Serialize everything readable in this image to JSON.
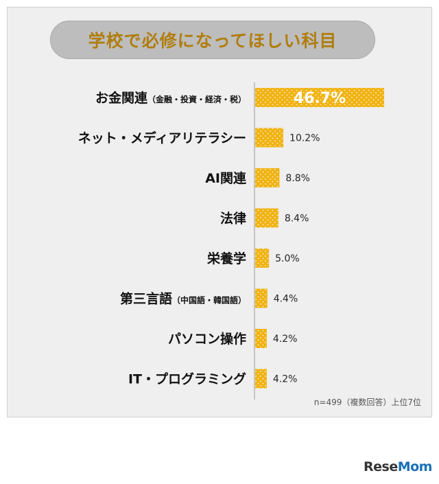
{
  "chart_data": {
    "type": "bar",
    "orientation": "horizontal",
    "title": "学校で必修になってほしい科目",
    "categories": [
      {
        "main": "お金関連",
        "sub": "（金融・投資・経済・税）"
      },
      {
        "main": "ネット・メディアリテラシー",
        "sub": ""
      },
      {
        "main": "AI関連",
        "sub": ""
      },
      {
        "main": "法律",
        "sub": ""
      },
      {
        "main": "栄養学",
        "sub": ""
      },
      {
        "main": "第三言語",
        "sub": "（中国語・韓国語）"
      },
      {
        "main": "パソコン操作",
        "sub": ""
      },
      {
        "main": "IT・プログラミング",
        "sub": ""
      }
    ],
    "values": [
      46.7,
      10.2,
      8.8,
      8.4,
      5.0,
      4.4,
      4.2,
      4.2
    ],
    "value_labels": [
      "46.7%",
      "10.2%",
      "8.8%",
      "8.4%",
      "5.0%",
      "4.4%",
      "4.2%",
      "4.2%"
    ],
    "xlim": [
      0,
      50
    ],
    "bar_color": "#f0b313",
    "grid": false,
    "legend": "none"
  },
  "note": "n=499（複数回答）上位7位",
  "logo": {
    "part1": "Rese",
    "part2": "Mom"
  }
}
